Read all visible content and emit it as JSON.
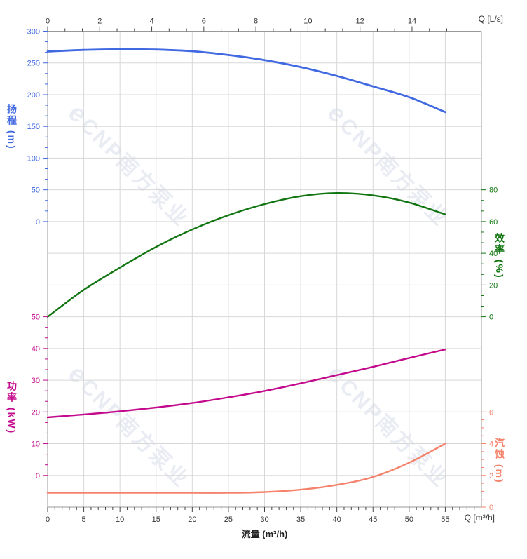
{
  "page": {
    "background": "#ffffff"
  },
  "watermark": {
    "logo_letter": "e",
    "text": "CNP南方泵业",
    "color": "#e9ecf3"
  },
  "axis_titles": {
    "head": {
      "text": "扬程 (m)",
      "color": "#4169e1"
    },
    "power": {
      "text": "功率 (kW)",
      "color": "#c40a8c"
    },
    "efficiency": {
      "text": "效率 (%)",
      "color": "#117611"
    },
    "npsh": {
      "text": "汽蚀 (m)",
      "color": "#f5826b"
    },
    "flow": {
      "text": "流量 (m³/h)",
      "color": "#222222"
    },
    "q_top": {
      "text": "Q [L/s]",
      "color": "#333333"
    },
    "q_bottom": {
      "text": "Q [m³/h]",
      "color": "#333333"
    }
  },
  "chart_data": {
    "type": "line",
    "title": "",
    "grid": true,
    "grid_color": "#d8d8d8",
    "frame_color": "#999999",
    "tick_label_color": "#333333",
    "x": [
      0,
      5,
      10,
      15,
      20,
      25,
      30,
      35,
      40,
      45,
      50,
      55
    ],
    "xlabel": "流量 (m³/h)",
    "xlim": [
      0,
      60
    ],
    "bottom_axis": {
      "unit_label": "Q [m³/h]",
      "majors": [
        0,
        5,
        10,
        15,
        20,
        25,
        30,
        35,
        40,
        45,
        50,
        55
      ],
      "minor_step": 1
    },
    "top_axis": {
      "unit_label": "Q [L/s]",
      "majors": [
        0,
        2,
        4,
        6,
        8,
        10,
        12,
        14
      ],
      "minor_divs": 3,
      "lps_to_m3h": 3.6
    },
    "series": [
      {
        "id": "head",
        "name": "扬程",
        "unit": "m",
        "color": "#4169e1",
        "width": 2.8,
        "axis": {
          "side": "left",
          "top_row": 0,
          "labels": [
            300,
            250,
            200,
            150,
            100,
            50,
            0
          ],
          "minor_divs": 3
        },
        "values": [
          268,
          270.5,
          271.5,
          271,
          268.5,
          262.5,
          254.5,
          243.5,
          229.5,
          213,
          196,
          172.5
        ]
      },
      {
        "id": "efficiency",
        "name": "效率",
        "unit": "%",
        "color": "#117611",
        "width": 2.4,
        "axis": {
          "side": "right",
          "top_row": 5,
          "labels": [
            80,
            60,
            40,
            20,
            0
          ],
          "minor_divs": 3
        },
        "values": [
          0,
          17,
          31,
          44,
          55,
          64,
          71,
          76,
          78,
          76.5,
          72,
          64.5
        ]
      },
      {
        "id": "power",
        "name": "功率",
        "unit": "kW",
        "color": "#c40a8c",
        "width": 2.4,
        "axis": {
          "side": "left",
          "top_row": 9,
          "labels": [
            50,
            40,
            30,
            20,
            10,
            0
          ],
          "minor_divs": 3
        },
        "values": [
          18.3,
          19.2,
          20.2,
          21.4,
          22.8,
          24.6,
          26.6,
          29.0,
          31.6,
          34.2,
          37.0,
          39.7
        ]
      },
      {
        "id": "npsh",
        "name": "汽蚀",
        "unit": "m",
        "color": "#f5826b",
        "width": 2.4,
        "axis": {
          "side": "right",
          "top_row": 12,
          "labels": [
            6,
            4,
            2,
            0
          ],
          "minor_divs": 4
        },
        "values": [
          0.9,
          0.9,
          0.9,
          0.9,
          0.9,
          0.9,
          0.95,
          1.1,
          1.4,
          1.9,
          2.8,
          4.0
        ]
      }
    ]
  }
}
